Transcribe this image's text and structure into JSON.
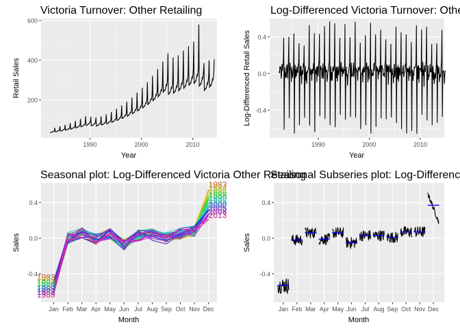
{
  "chart_data": [
    {
      "type": "line",
      "title": "Victoria Turnover: Other Retailing",
      "xlabel": "Year",
      "ylabel": "Retail Sales",
      "xlim": [
        1980.5,
        2014.7
      ],
      "ylim": [
        10,
        610
      ],
      "x_ticks": [
        1990,
        2000,
        2010
      ],
      "y_ticks": [
        200,
        400,
        600
      ],
      "grid": true,
      "x_start": 1982.25,
      "months": 393,
      "values": [
        35,
        36,
        37,
        38,
        37,
        39,
        40,
        42,
        41,
        43,
        46,
        60,
        40,
        40,
        41,
        42,
        41,
        43,
        44,
        46,
        45,
        48,
        51,
        68,
        44,
        44,
        45,
        46,
        45,
        47,
        49,
        51,
        50,
        53,
        56,
        75,
        48,
        49,
        50,
        51,
        50,
        52,
        54,
        56,
        55,
        58,
        62,
        84,
        53,
        54,
        55,
        57,
        56,
        58,
        60,
        62,
        61,
        64,
        69,
        95,
        59,
        60,
        61,
        63,
        62,
        64,
        66,
        69,
        68,
        71,
        76,
        105,
        65,
        66,
        67,
        69,
        68,
        70,
        73,
        76,
        75,
        78,
        84,
        118,
        72,
        73,
        74,
        76,
        75,
        77,
        80,
        84,
        83,
        86,
        92,
        116,
        70,
        71,
        72,
        74,
        73,
        75,
        78,
        81,
        80,
        83,
        89,
        113,
        69,
        70,
        71,
        73,
        72,
        74,
        77,
        80,
        79,
        82,
        88,
        118,
        74,
        75,
        76,
        78,
        77,
        79,
        82,
        85,
        84,
        88,
        94,
        128,
        80,
        81,
        82,
        84,
        83,
        86,
        89,
        92,
        91,
        95,
        102,
        140,
        88,
        89,
        90,
        92,
        91,
        94,
        97,
        101,
        100,
        104,
        112,
        156,
        97,
        98,
        99,
        102,
        101,
        104,
        108,
        112,
        110,
        115,
        124,
        173,
        107,
        108,
        110,
        113,
        112,
        115,
        119,
        124,
        122,
        128,
        138,
        192,
        118,
        119,
        121,
        124,
        123,
        127,
        132,
        137,
        135,
        141,
        152,
        213,
        131,
        132,
        134,
        137,
        136,
        141,
        146,
        151,
        149,
        156,
        168,
        237,
        145,
        146,
        148,
        152,
        151,
        156,
        161,
        168,
        165,
        173,
        186,
        262,
        160,
        162,
        164,
        168,
        167,
        172,
        178,
        185,
        183,
        191,
        206,
        290,
        177,
        179,
        181,
        186,
        185,
        190,
        197,
        205,
        202,
        211,
        228,
        322,
        196,
        198,
        201,
        206,
        204,
        211,
        218,
        227,
        224,
        234,
        252,
        356,
        216,
        219,
        222,
        227,
        226,
        233,
        241,
        251,
        247,
        258,
        279,
        394,
        239,
        242,
        245,
        251,
        249,
        257,
        266,
        277,
        273,
        285,
        308,
        436,
        228,
        230,
        233,
        238,
        237,
        244,
        253,
        263,
        259,
        271,
        293,
        414,
        234,
        236,
        239,
        245,
        243,
        251,
        260,
        270,
        266,
        278,
        300,
        425,
        246,
        249,
        252,
        258,
        256,
        264,
        274,
        285,
        280,
        293,
        316,
        448,
        259,
        262,
        265,
        271,
        269,
        278,
        288,
        300,
        295,
        308,
        333,
        470,
        272,
        276,
        279,
        285,
        283,
        292,
        303,
        315,
        310,
        324,
        350,
        494,
        283,
        286,
        290,
        296,
        294,
        304,
        315,
        327,
        322,
        337,
        364,
        580,
        270,
        273,
        276,
        282,
        280,
        289,
        300,
        312,
        307,
        321,
        347,
        385,
        248,
        251,
        254,
        259,
        258,
        266,
        276,
        287,
        282,
        295,
        319,
        400,
        265,
        268,
        271,
        277,
        275,
        284,
        294,
        306,
        301,
        315,
        340,
        405
      ]
    },
    {
      "type": "line",
      "title": "Log-Differenced Victoria Turnover: Other Retailing",
      "xlabel": "Year",
      "ylabel": "Log-Differenced Retail Sales",
      "xlim": [
        1980.5,
        2014.7
      ],
      "ylim": [
        -0.7,
        0.6
      ],
      "x_ticks": [
        1990,
        2000,
        2010
      ],
      "y_ticks": [
        -0.4,
        0.0,
        0.4
      ],
      "grid": true,
      "x_start": 1982.33,
      "months": 392,
      "monthly_pattern": [
        0.0,
        0.03,
        0.06,
        -0.01,
        0.05,
        -0.08,
        0.03,
        0.05,
        0.0,
        0.05,
        0.08,
        0.36,
        -0.55
      ],
      "peak_range": [
        0.3,
        0.57
      ],
      "trough_range": [
        -0.42,
        -0.66
      ]
    },
    {
      "type": "line",
      "title": "Seasonal plot: Log-Differenced Victoria Other Retailing",
      "xlabel": "Month",
      "ylabel": "Sales",
      "categories": [
        "Jan",
        "Feb",
        "Mar",
        "Apr",
        "May",
        "Jun",
        "Jul",
        "Aug",
        "Sep",
        "Oct",
        "Nov",
        "Dec"
      ],
      "ylim": [
        -0.72,
        0.62
      ],
      "y_ticks": [
        -0.4,
        0.0,
        0.4
      ],
      "grid": true,
      "years": [
        1982,
        1983,
        1984,
        1985,
        1986,
        1987,
        1988,
        1989,
        1990,
        1991,
        1992,
        1993,
        1994,
        1995,
        1996,
        1997,
        1998,
        1999,
        2000,
        2001,
        2002,
        2003,
        2004,
        2005,
        2006,
        2007,
        2008,
        2009,
        2010,
        2011,
        2012,
        2013
      ],
      "year_labels": {
        "first": "1983",
        "last": "2013",
        "left": [
          "1983",
          "1985",
          "1984",
          "1986",
          "1988",
          "1987",
          "1989"
        ],
        "right": [
          "1983",
          "1984",
          "1986",
          "1988",
          "1990",
          "1995",
          "2000",
          "2005",
          "2008",
          "2013"
        ]
      },
      "monthly_mean": [
        -0.55,
        0.0,
        0.06,
        -0.01,
        0.05,
        -0.07,
        0.03,
        0.04,
        0.0,
        0.05,
        0.08,
        0.36
      ],
      "dec_range": [
        0.22,
        0.55
      ]
    },
    {
      "type": "line",
      "title": "Seasonal Subseries plot: Log-Differenced Victoria Other Retailing",
      "xlabel": "Month",
      "ylabel": "Sales",
      "categories": [
        "Jan",
        "Feb",
        "Mar",
        "Apr",
        "May",
        "Jun",
        "Jul",
        "Aug",
        "Sep",
        "Oct",
        "Nov",
        "Dec"
      ],
      "ylim": [
        -0.72,
        0.62
      ],
      "y_ticks": [
        -0.4,
        0.0,
        0.4
      ],
      "grid": true,
      "monthly_mean": [
        -0.53,
        -0.02,
        0.06,
        -0.01,
        0.06,
        -0.05,
        0.03,
        0.03,
        0.01,
        0.07,
        0.07,
        0.37
      ],
      "mean_color": "#0000ff"
    }
  ]
}
